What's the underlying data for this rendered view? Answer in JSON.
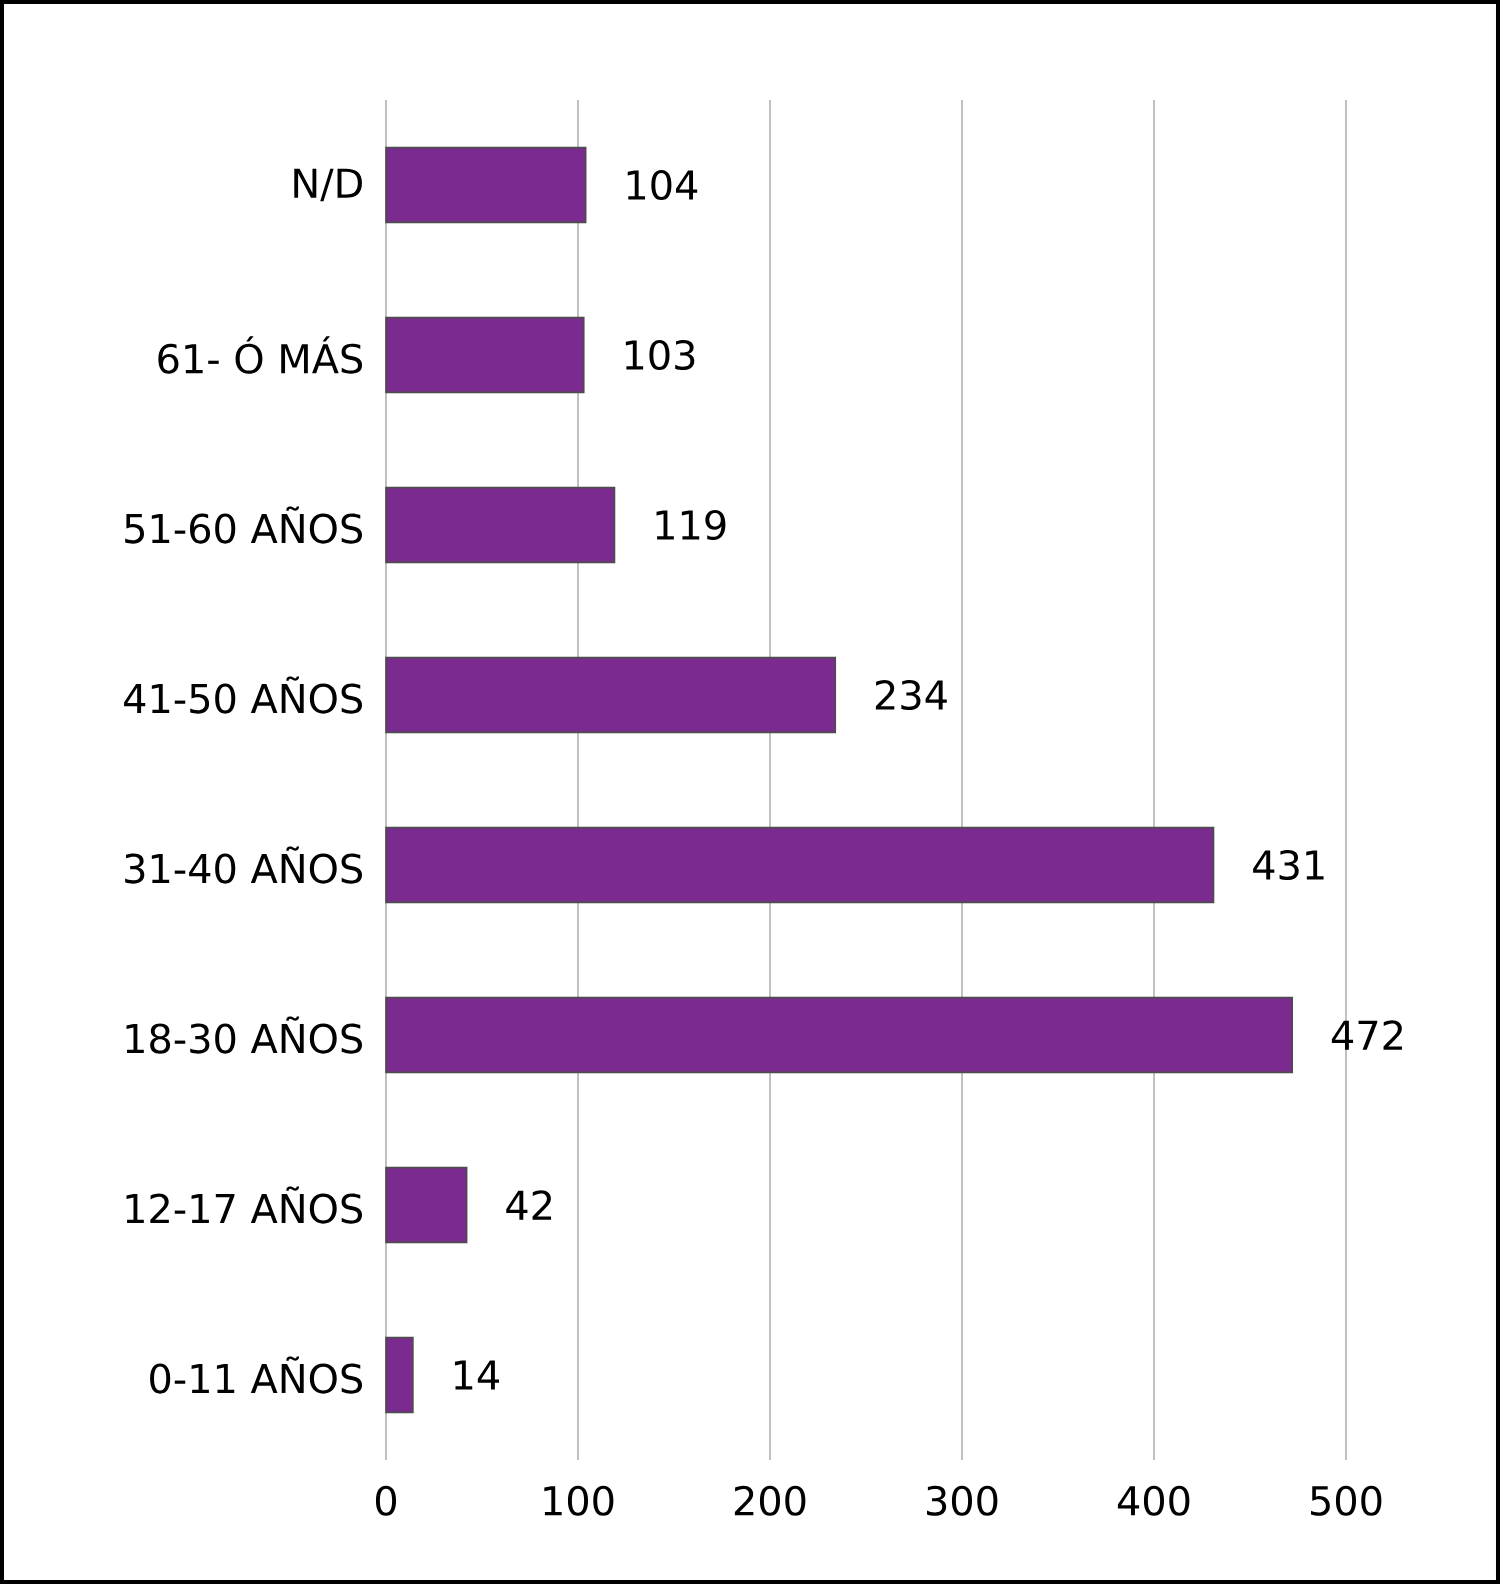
{
  "chart_data": {
    "type": "bar",
    "orientation": "horizontal",
    "categories": [
      "N/D",
      "61- Ó MÁS",
      "51-60 AÑOS",
      "41-50 AÑOS",
      "31-40 AÑOS",
      "18-30 AÑOS",
      "12-17 AÑOS",
      "0-11 AÑOS"
    ],
    "values": [
      104,
      103,
      119,
      234,
      431,
      472,
      42,
      14
    ],
    "color": "#7b2a8f",
    "xlim": [
      0,
      500
    ],
    "xticks": [
      0,
      100,
      200,
      300,
      400,
      500
    ],
    "grid": "x",
    "data_labels": true
  }
}
